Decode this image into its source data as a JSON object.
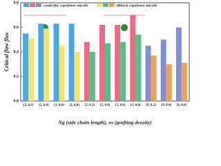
{
  "chart_data": {
    "type": "bar",
    "y_label": "Critical flow flux",
    "x_label": "Ng (side chain length), σs (grafting density)",
    "categories": [
      "(2, 0.2)",
      "(2, 0.4)",
      "(2, 0.6)",
      "(2, 0.8)",
      "(5, 0.2)",
      "(5, 0.4)",
      "(5, 0.6)",
      "(5, 0.8)",
      "(9, 0.2)",
      "(9, 0.4)",
      "(9, 0.6)"
    ],
    "series": [
      {
        "name": "comb-like copolymer micelle",
        "colors": [
          "#4aa8e6",
          "#4aa8e6",
          "#4aa8e6",
          "#4aa8e6",
          "#ec6a86",
          "#ec6a86",
          "#ec6a86",
          "#ec6a86",
          "#7f8fd8",
          "#7f8fd8",
          "#7f8fd8"
        ],
        "values": [
          0.55,
          0.63,
          0.63,
          0.63,
          0.48,
          0.62,
          0.62,
          0.7,
          0.45,
          0.5,
          0.6
        ]
      },
      {
        "name": "diblock copolymer micelle",
        "colors": [
          "#f4e56a",
          "#f4e56a",
          "#f4e56a",
          "#f4e56a",
          "#55bf86",
          "#55bf86",
          "#55bf86",
          "#55bf86",
          "#f2a150",
          "#f2a150",
          "#f2a150"
        ],
        "values": [
          0.51,
          0.59,
          0.45,
          0.4,
          0.4,
          0.47,
          0.48,
          0.54,
          0.37,
          0.3,
          0.31
        ]
      }
    ],
    "ylim": [
      0,
      0.8
    ],
    "yticks": [
      {
        "value": 0,
        "label": "0.0"
      },
      0.2,
      0.4,
      0.6,
      0.8
    ]
  }
}
